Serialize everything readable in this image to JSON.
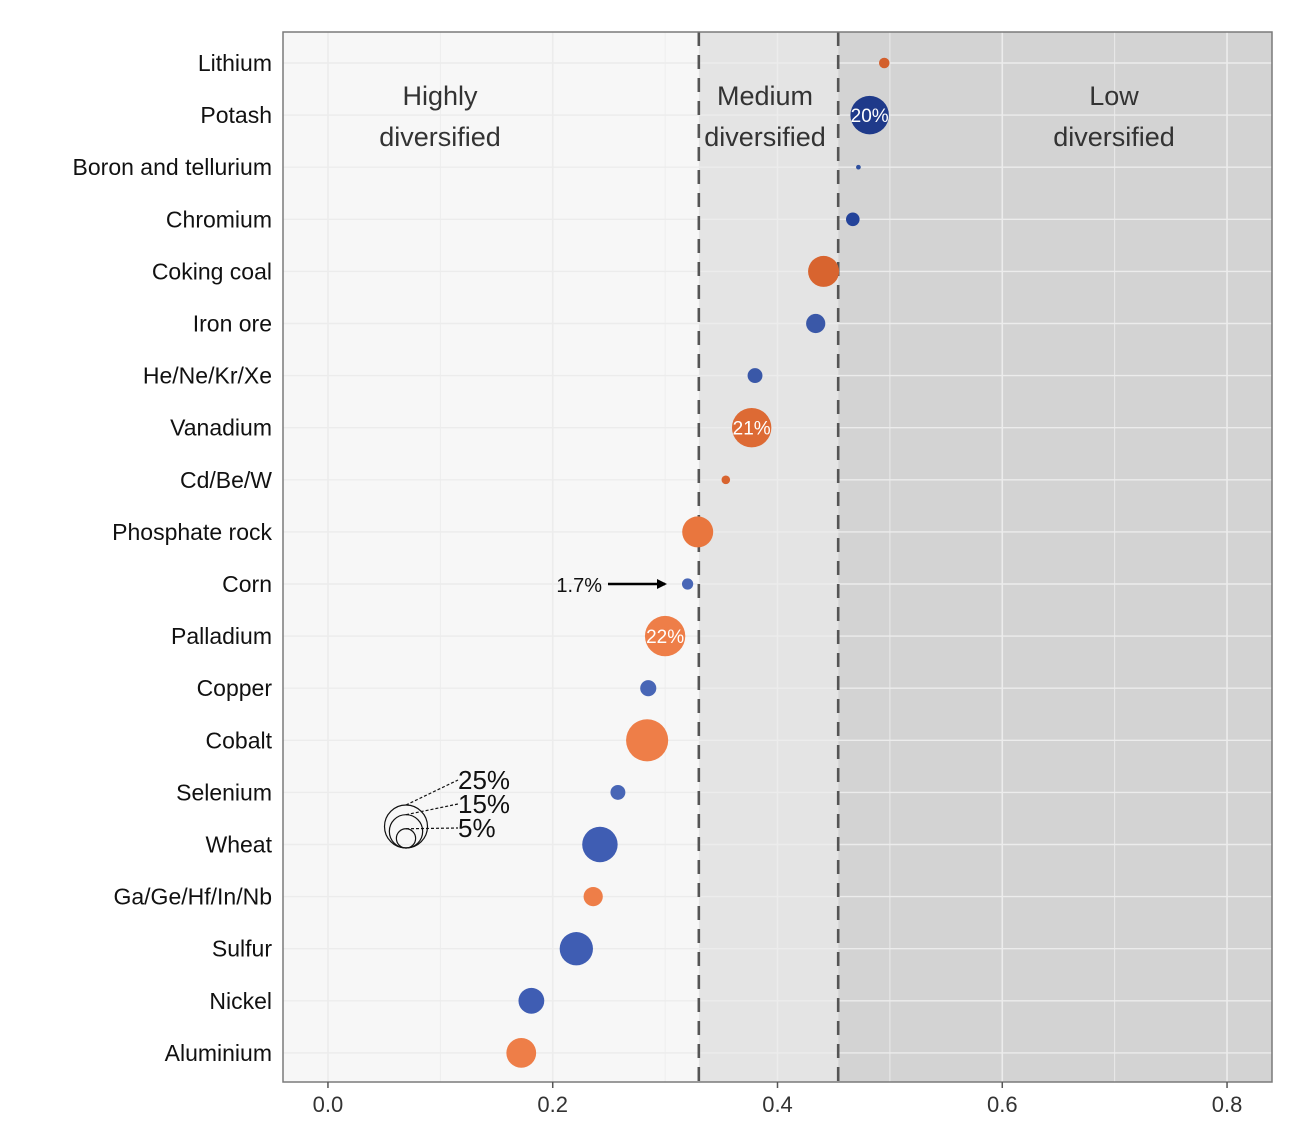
{
  "chart_data": {
    "type": "scatter",
    "title": "",
    "xlabel": "",
    "ylabel": "",
    "xlim": [
      -0.04,
      0.84
    ],
    "x_ticks": [
      0.0,
      0.2,
      0.4,
      0.6,
      0.8
    ],
    "x_tick_labels": [
      "0.0",
      "0.2",
      "0.4",
      "0.6",
      "0.8"
    ],
    "grid": true,
    "categories": [
      "Lithium",
      "Potash",
      "Boron and tellurium",
      "Chromium",
      "Coking coal",
      "Iron ore",
      "He/Ne/Kr/Xe",
      "Vanadium",
      "Cd/Be/W",
      "Phosphate rock",
      "Corn",
      "Palladium",
      "Copper",
      "Cobalt",
      "Selenium",
      "Wheat",
      "Ga/Ge/Hf/In/Nb",
      "Sulfur",
      "Nickel",
      "Aluminium"
    ],
    "points": [
      {
        "category": "Lithium",
        "x": 0.495,
        "size_pct": 1.5,
        "color": "#d35f2c",
        "label": ""
      },
      {
        "category": "Potash",
        "x": 0.482,
        "size_pct": 20,
        "color": "#1f3a8a",
        "label": "20%"
      },
      {
        "category": "Boron and tellurium",
        "x": 0.472,
        "size_pct": 0.3,
        "color": "#2e4f9e",
        "label": ""
      },
      {
        "category": "Chromium",
        "x": 0.467,
        "size_pct": 2.5,
        "color": "#24439a",
        "label": ""
      },
      {
        "category": "Coking coal",
        "x": 0.441,
        "size_pct": 13,
        "color": "#d8642f",
        "label": ""
      },
      {
        "category": "Iron ore",
        "x": 0.434,
        "size_pct": 5,
        "color": "#3a58a8",
        "label": ""
      },
      {
        "category": "He/Ne/Kr/Xe",
        "x": 0.38,
        "size_pct": 3,
        "color": "#3a58a8",
        "label": ""
      },
      {
        "category": "Vanadium",
        "x": 0.377,
        "size_pct": 21,
        "color": "#dd6a34",
        "label": "21%"
      },
      {
        "category": "Cd/Be/W",
        "x": 0.354,
        "size_pct": 1,
        "color": "#d8642f",
        "label": ""
      },
      {
        "category": "Phosphate rock",
        "x": 0.329,
        "size_pct": 13,
        "color": "#e9763e",
        "label": ""
      },
      {
        "category": "Corn",
        "x": 0.32,
        "size_pct": 1.7,
        "color": "#4866b6",
        "label": ""
      },
      {
        "category": "Palladium",
        "x": 0.3,
        "size_pct": 22,
        "color": "#ee7e48",
        "label": "22%"
      },
      {
        "category": "Copper",
        "x": 0.285,
        "size_pct": 3.5,
        "color": "#4866b6",
        "label": ""
      },
      {
        "category": "Cobalt",
        "x": 0.284,
        "size_pct": 24,
        "color": "#ee7e48",
        "label": ""
      },
      {
        "category": "Selenium",
        "x": 0.258,
        "size_pct": 3,
        "color": "#4866b6",
        "label": ""
      },
      {
        "category": "Wheat",
        "x": 0.242,
        "size_pct": 17,
        "color": "#3f5db3",
        "label": ""
      },
      {
        "category": "Ga/Ge/Hf/In/Nb",
        "x": 0.236,
        "size_pct": 5,
        "color": "#ee7e48",
        "label": ""
      },
      {
        "category": "Sulfur",
        "x": 0.221,
        "size_pct": 15,
        "color": "#3f5db3",
        "label": ""
      },
      {
        "category": "Nickel",
        "x": 0.181,
        "size_pct": 9,
        "color": "#3f5db3",
        "label": ""
      },
      {
        "category": "Aluminium",
        "x": 0.172,
        "size_pct": 12,
        "color": "#ee7e48",
        "label": ""
      }
    ],
    "zones": [
      {
        "label": "Highly diversified",
        "lines": [
          "Highly",
          "diversified"
        ],
        "x_from": -0.04,
        "x_to": 0.33,
        "fill": "#f7f7f7"
      },
      {
        "label": "Medium diversified",
        "lines": [
          "Medium",
          "diversified"
        ],
        "x_from": 0.33,
        "x_to": 0.454,
        "fill": "#e4e4e4"
      },
      {
        "label": "Low diversified",
        "lines": [
          "Low",
          "diversified"
        ],
        "x_from": 0.454,
        "x_to": 0.84,
        "fill": "#d3d3d3"
      }
    ],
    "thresholds": [
      0.33,
      0.454
    ],
    "annotation": {
      "text": "1.7%",
      "category": "Corn"
    },
    "size_legend": [
      {
        "label": "25%",
        "pct": 25
      },
      {
        "label": "15%",
        "pct": 15
      },
      {
        "label": "5%",
        "pct": 5
      }
    ]
  }
}
